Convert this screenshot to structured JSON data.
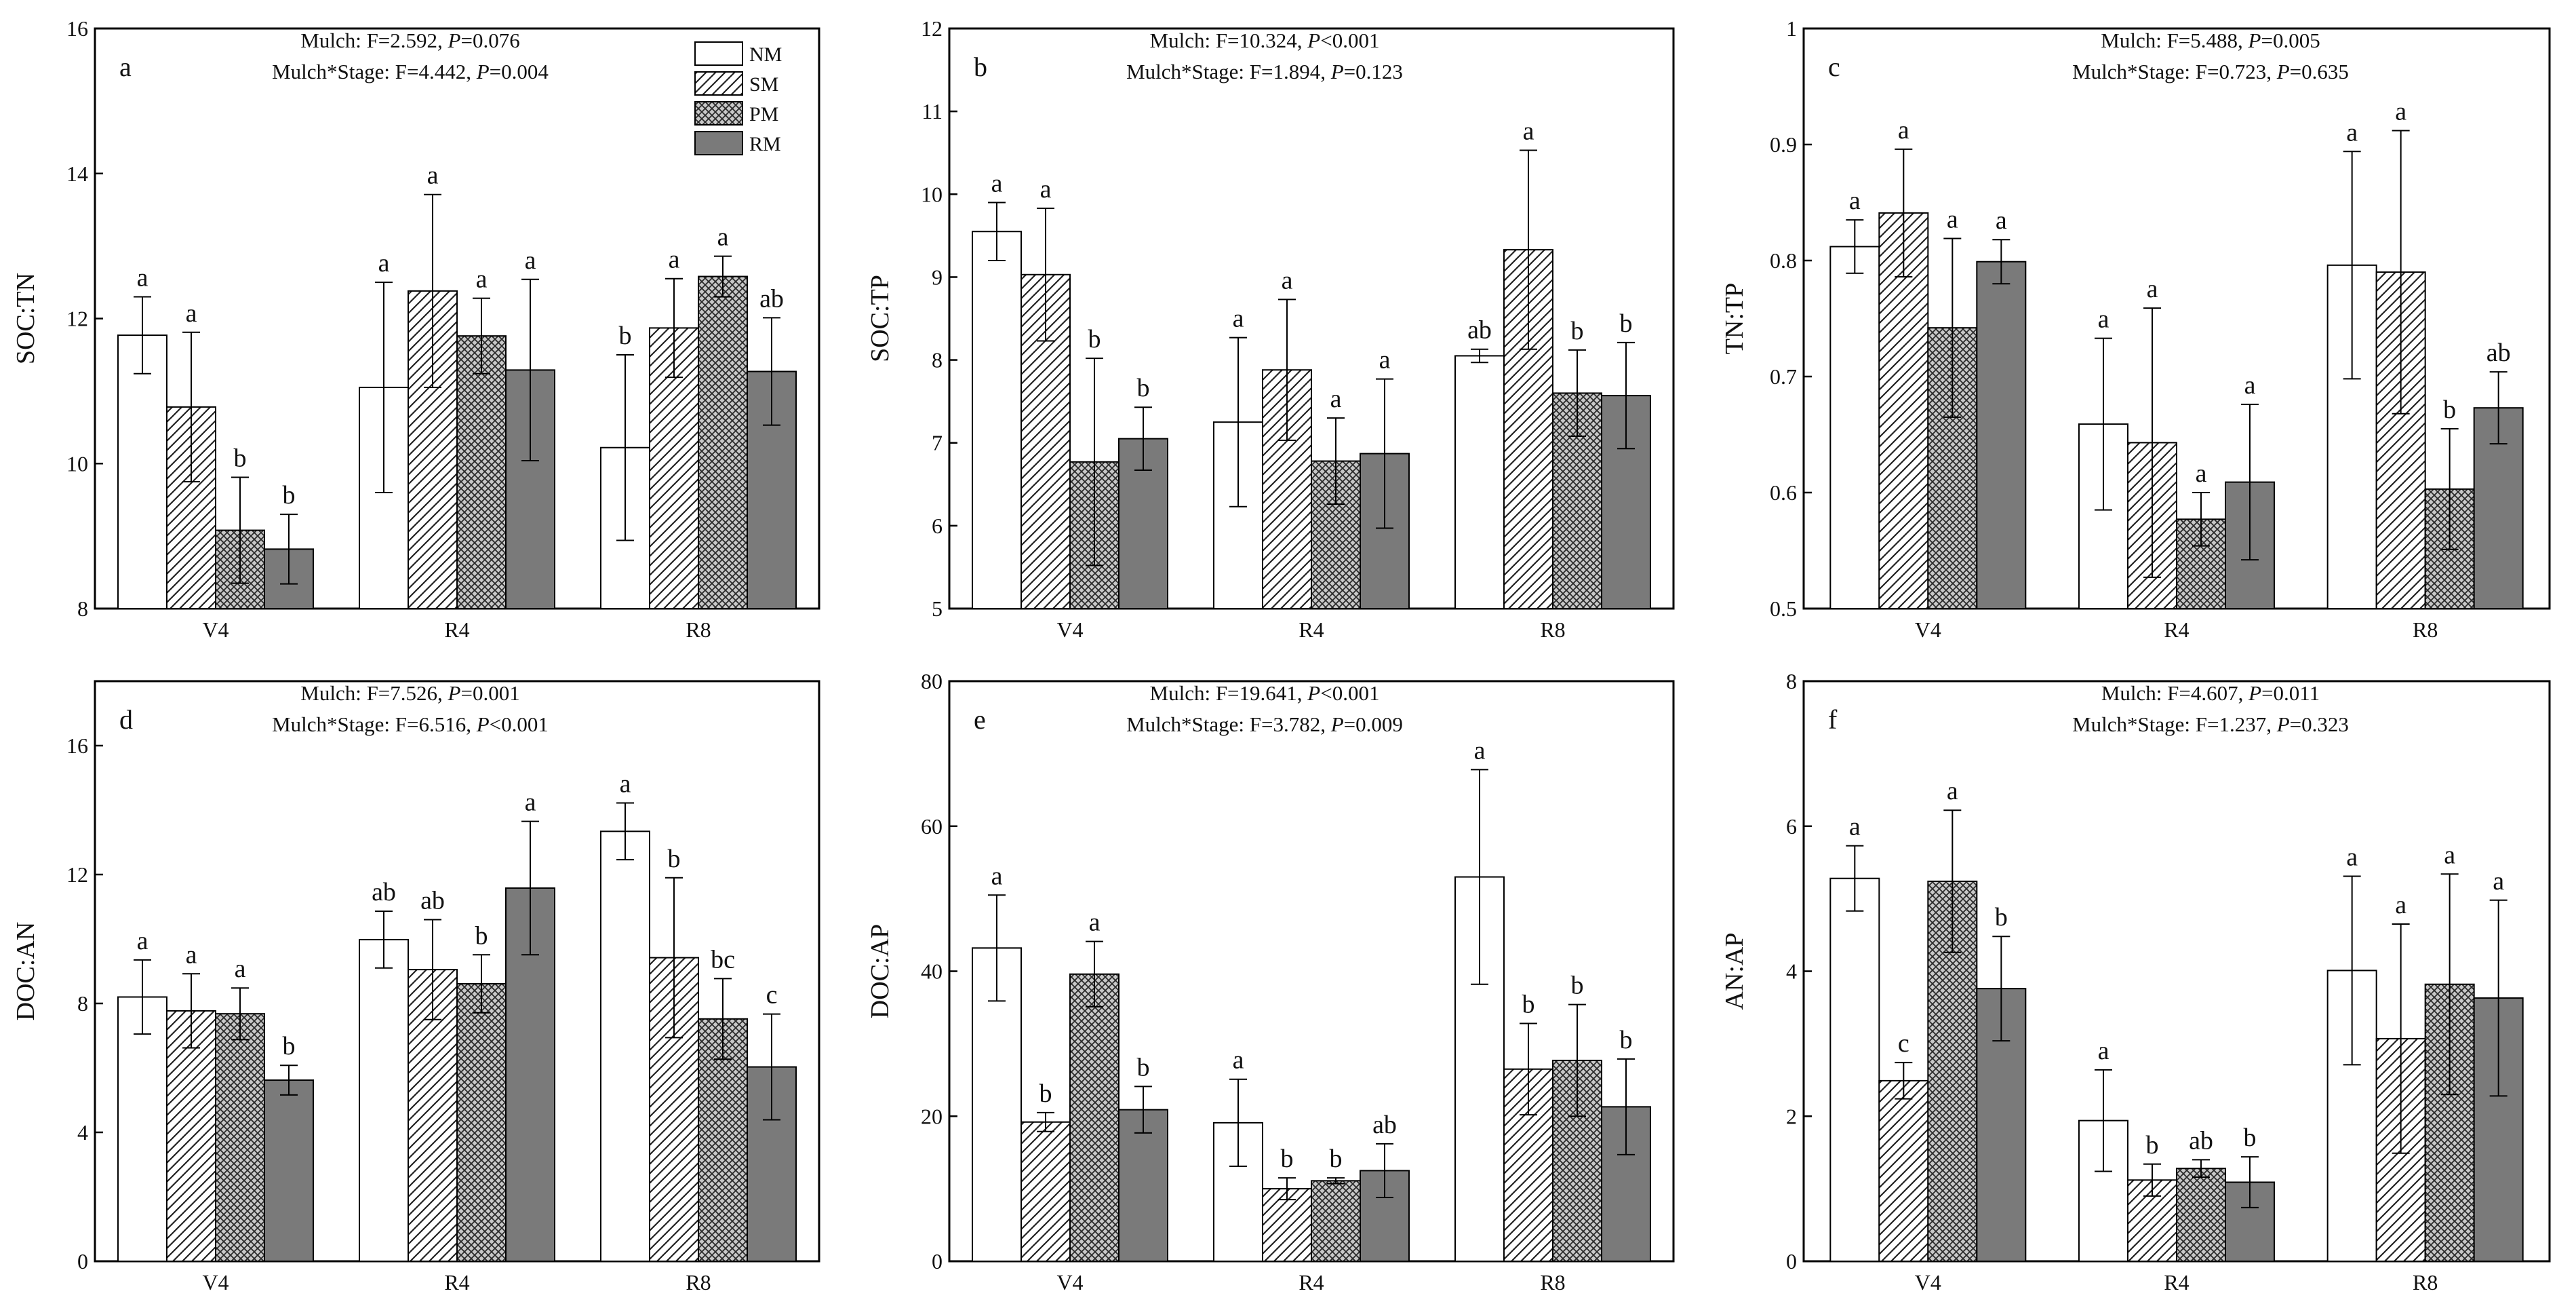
{
  "legend": {
    "items": [
      {
        "label": "NM",
        "pattern": "solid-white"
      },
      {
        "label": "SM",
        "pattern": "diagonal-hatch"
      },
      {
        "label": "PM",
        "pattern": "crosshatch"
      },
      {
        "label": "RM",
        "pattern": "solid-gray"
      }
    ]
  },
  "colors": {
    "frame": "#000000",
    "rm_fill": "#7a7a7a",
    "hatch": "#222222"
  },
  "chart_data": [
    {
      "type": "bar",
      "panel": "a",
      "ylabel": "SOC:TN",
      "ylim": [
        8,
        16
      ],
      "yticks": [
        8,
        10,
        12,
        14,
        16
      ],
      "categories": [
        "V4",
        "R4",
        "R8"
      ],
      "series": [
        {
          "name": "NM",
          "values": [
            11.77,
            11.05,
            10.22
          ],
          "errors": [
            0.53,
            1.45,
            1.28
          ],
          "letters": [
            "a",
            "a",
            "b"
          ]
        },
        {
          "name": "SM",
          "values": [
            10.78,
            12.38,
            11.87
          ],
          "errors": [
            1.03,
            1.33,
            0.68
          ],
          "letters": [
            "a",
            "a",
            "a"
          ]
        },
        {
          "name": "PM",
          "values": [
            9.08,
            11.76,
            12.58
          ],
          "errors": [
            0.73,
            0.52,
            0.28
          ],
          "letters": [
            "b",
            "a",
            "a"
          ]
        },
        {
          "name": "RM",
          "values": [
            8.82,
            11.29,
            11.27
          ],
          "errors": [
            0.48,
            1.25,
            0.74
          ],
          "letters": [
            "b",
            "a",
            "ab"
          ]
        }
      ],
      "stats": {
        "mulch": {
          "label": "Mulch: F=2.592, ",
          "p_label": "P",
          "p_value": "=0.076"
        },
        "interaction": {
          "label": "Mulch*Stage: F=4.442, ",
          "p_label": "P",
          "p_value": "=0.004"
        }
      }
    },
    {
      "type": "bar",
      "panel": "b",
      "ylabel": "SOC:TP",
      "ylim": [
        5,
        12
      ],
      "yticks": [
        5,
        6,
        7,
        8,
        9,
        10,
        11,
        12
      ],
      "categories": [
        "V4",
        "R4",
        "R8"
      ],
      "series": [
        {
          "name": "NM",
          "values": [
            9.55,
            7.25,
            8.05
          ],
          "errors": [
            0.35,
            1.02,
            0.08
          ],
          "letters": [
            "a",
            "a",
            "ab"
          ]
        },
        {
          "name": "SM",
          "values": [
            9.03,
            7.88,
            9.33
          ],
          "errors": [
            0.8,
            0.85,
            1.2
          ],
          "letters": [
            "a",
            "a",
            "a"
          ]
        },
        {
          "name": "PM",
          "values": [
            6.77,
            6.78,
            7.6
          ],
          "errors": [
            1.25,
            0.52,
            0.52
          ],
          "letters": [
            "b",
            "a",
            "b"
          ]
        },
        {
          "name": "RM",
          "values": [
            7.05,
            6.87,
            7.57
          ],
          "errors": [
            0.38,
            0.9,
            0.64
          ],
          "letters": [
            "b",
            "a",
            "b"
          ]
        }
      ],
      "stats": {
        "mulch": {
          "label": "Mulch: F=10.324, ",
          "p_label": "P",
          "p_value": "<0.001"
        },
        "interaction": {
          "label": "Mulch*Stage: F=1.894, ",
          "p_label": "P",
          "p_value": "=0.123"
        }
      }
    },
    {
      "type": "bar",
      "panel": "c",
      "ylabel": "TN:TP",
      "ylim": [
        0.5,
        1.0
      ],
      "yticks": [
        0.5,
        0.6,
        0.7,
        0.8,
        0.9,
        1.0
      ],
      "categories": [
        "V4",
        "R4",
        "R8"
      ],
      "series": [
        {
          "name": "NM",
          "values": [
            0.812,
            0.659,
            0.796
          ],
          "errors": [
            0.023,
            0.074,
            0.098
          ],
          "letters": [
            "a",
            "a",
            "a"
          ]
        },
        {
          "name": "SM",
          "values": [
            0.841,
            0.643,
            0.79
          ],
          "errors": [
            0.055,
            0.116,
            0.122
          ],
          "letters": [
            "a",
            "a",
            "a"
          ]
        },
        {
          "name": "PM",
          "values": [
            0.742,
            0.577,
            0.603
          ],
          "errors": [
            0.077,
            0.023,
            0.052
          ],
          "letters": [
            "a",
            "a",
            "b"
          ]
        },
        {
          "name": "RM",
          "values": [
            0.799,
            0.609,
            0.673
          ],
          "errors": [
            0.019,
            0.067,
            0.031
          ],
          "letters": [
            "a",
            "a",
            "ab"
          ]
        }
      ],
      "stats": {
        "mulch": {
          "label": "Mulch: F=5.488, ",
          "p_label": "P",
          "p_value": "=0.005"
        },
        "interaction": {
          "label": "Mulch*Stage: F=0.723, ",
          "p_label": "P",
          "p_value": "=0.635"
        }
      }
    },
    {
      "type": "bar",
      "panel": "d",
      "ylabel": "DOC:AN",
      "ylim": [
        0,
        18
      ],
      "yticks": [
        0,
        4,
        8,
        12,
        16
      ],
      "categories": [
        "V4",
        "R4",
        "R8"
      ],
      "series": [
        {
          "name": "NM",
          "values": [
            8.2,
            9.98,
            13.34
          ],
          "errors": [
            1.15,
            0.88,
            0.88
          ],
          "letters": [
            "a",
            "ab",
            "a"
          ]
        },
        {
          "name": "SM",
          "values": [
            7.77,
            9.05,
            9.42
          ],
          "errors": [
            1.15,
            1.55,
            2.48
          ],
          "letters": [
            "a",
            "ab",
            "b"
          ]
        },
        {
          "name": "PM",
          "values": [
            7.68,
            8.61,
            7.52
          ],
          "errors": [
            0.8,
            0.9,
            1.25
          ],
          "letters": [
            "a",
            "b",
            "bc"
          ]
        },
        {
          "name": "RM",
          "values": [
            5.62,
            11.58,
            6.03
          ],
          "errors": [
            0.46,
            2.07,
            1.64
          ],
          "letters": [
            "b",
            "a",
            "c"
          ]
        }
      ],
      "stats": {
        "mulch": {
          "label": "Mulch: F=7.526, ",
          "p_label": "P",
          "p_value": "=0.001"
        },
        "interaction": {
          "label": "Mulch*Stage: F=6.516, ",
          "p_label": "P",
          "p_value": "<0.001"
        }
      }
    },
    {
      "type": "bar",
      "panel": "e",
      "ylabel": "DOC:AP",
      "ylim": [
        0,
        80
      ],
      "yticks": [
        0,
        20,
        40,
        60,
        80
      ],
      "categories": [
        "V4",
        "R4",
        "R8"
      ],
      "series": [
        {
          "name": "NM",
          "values": [
            43.2,
            19.1,
            53.0
          ],
          "errors": [
            7.3,
            6.0,
            14.8
          ],
          "letters": [
            "a",
            "a",
            "a"
          ]
        },
        {
          "name": "SM",
          "values": [
            19.2,
            10.0,
            26.5
          ],
          "errors": [
            1.3,
            1.5,
            6.3
          ],
          "letters": [
            "b",
            "b",
            "b"
          ]
        },
        {
          "name": "PM",
          "values": [
            39.6,
            11.1,
            27.7
          ],
          "errors": [
            4.5,
            0.4,
            7.7
          ],
          "letters": [
            "a",
            "b",
            "b"
          ]
        },
        {
          "name": "RM",
          "values": [
            20.9,
            12.5,
            21.3
          ],
          "errors": [
            3.2,
            3.7,
            6.6
          ],
          "letters": [
            "b",
            "ab",
            "b"
          ]
        }
      ],
      "stats": {
        "mulch": {
          "label": "Mulch: F=19.641, ",
          "p_label": "P",
          "p_value": "<0.001"
        },
        "interaction": {
          "label": "Mulch*Stage: F=3.782, ",
          "p_label": "P",
          "p_value": "=0.009"
        }
      }
    },
    {
      "type": "bar",
      "panel": "f",
      "ylabel": "AN:AP",
      "ylim": [
        0,
        8
      ],
      "yticks": [
        0,
        2,
        4,
        6,
        8
      ],
      "categories": [
        "V4",
        "R4",
        "R8"
      ],
      "series": [
        {
          "name": "NM",
          "values": [
            5.28,
            1.94,
            4.01
          ],
          "errors": [
            0.45,
            0.7,
            1.3
          ],
          "letters": [
            "a",
            "a",
            "a"
          ]
        },
        {
          "name": "SM",
          "values": [
            2.49,
            1.12,
            3.07
          ],
          "errors": [
            0.25,
            0.22,
            1.58
          ],
          "letters": [
            "c",
            "b",
            "a"
          ]
        },
        {
          "name": "PM",
          "values": [
            5.24,
            1.28,
            3.82
          ],
          "errors": [
            0.98,
            0.12,
            1.52
          ],
          "letters": [
            "a",
            "ab",
            "a"
          ]
        },
        {
          "name": "RM",
          "values": [
            3.76,
            1.09,
            3.63
          ],
          "errors": [
            0.72,
            0.35,
            1.35
          ],
          "letters": [
            "b",
            "b",
            "a"
          ]
        }
      ],
      "stats": {
        "mulch": {
          "label": "Mulch: F=4.607, ",
          "p_label": "P",
          "p_value": "=0.011"
        },
        "interaction": {
          "label": "Mulch*Stage: F=1.237, ",
          "p_label": "P",
          "p_value": "=0.323"
        }
      }
    }
  ]
}
